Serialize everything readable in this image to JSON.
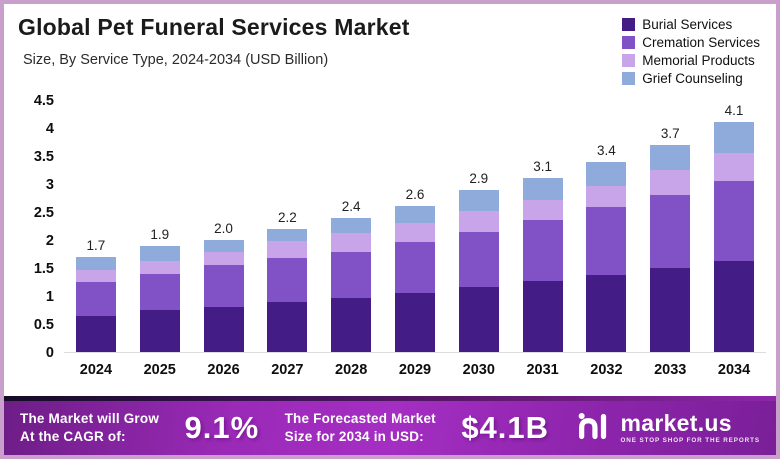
{
  "title": "Global Pet Funeral Services Market",
  "subtitle": "Size, By Service Type, 2024-2034 (USD Billion)",
  "chart_data": {
    "type": "stacked-bar",
    "title": "Global Pet Funeral Services Market",
    "subtitle": "Size, By Service Type, 2024-2034 (USD Billion)",
    "unit": "USD Billion",
    "categories": [
      "2024",
      "2025",
      "2026",
      "2027",
      "2028",
      "2029",
      "2030",
      "2031",
      "2032",
      "2033",
      "2034"
    ],
    "series": [
      {
        "name": "Burial Services",
        "color": "#441c85",
        "values": [
          0.65,
          0.75,
          0.8,
          0.89,
          0.97,
          1.06,
          1.16,
          1.27,
          1.38,
          1.5,
          1.62
        ]
      },
      {
        "name": "Cremation Services",
        "color": "#8151c6",
        "values": [
          0.6,
          0.64,
          0.75,
          0.79,
          0.82,
          0.91,
          0.99,
          1.08,
          1.21,
          1.31,
          1.43
        ]
      },
      {
        "name": "Memorial Products",
        "color": "#c8a5e9",
        "values": [
          0.22,
          0.23,
          0.23,
          0.3,
          0.34,
          0.33,
          0.36,
          0.37,
          0.38,
          0.44,
          0.5
        ]
      },
      {
        "name": "Grief Counseling",
        "color": "#8fabdb",
        "values": [
          0.23,
          0.28,
          0.22,
          0.22,
          0.27,
          0.3,
          0.39,
          0.38,
          0.43,
          0.45,
          0.55
        ]
      }
    ],
    "totals": [
      "1.7",
      "1.9",
      "2.0",
      "2.2",
      "2.4",
      "2.6",
      "2.9",
      "3.1",
      "3.4",
      "3.7",
      "4.1"
    ],
    "ylim": [
      0,
      4.5
    ],
    "yticks": [
      "0",
      "0.5",
      "1",
      "1.5",
      "2",
      "2.5",
      "3",
      "3.5",
      "4",
      "4.5"
    ],
    "grid": false,
    "legend_position": "top-right"
  },
  "banner": {
    "cagr_label_line1": "The Market will Grow",
    "cagr_label_line2": "At the CAGR of:",
    "cagr_value": "9.1%",
    "forecast_label_line1": "The Forecasted Market",
    "forecast_label_line2": "Size for 2034 in USD:",
    "forecast_value": "$4.1B",
    "logo_name": "market.us",
    "logo_tagline": "ONE STOP SHOP FOR THE REPORTS"
  },
  "colors": {
    "border": "#c9a0cb",
    "banner_center": "#a42ec2",
    "banner_edge": "#6d1d86"
  }
}
